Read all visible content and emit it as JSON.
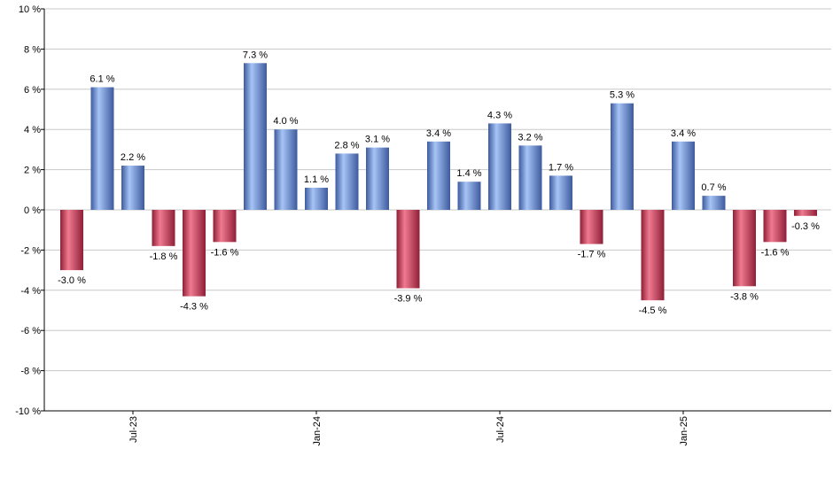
{
  "chart_data": {
    "type": "bar",
    "title": "",
    "xlabel": "",
    "ylabel": "",
    "ylim": [
      -10,
      10
    ],
    "y_ticks": [
      -10,
      -8,
      -6,
      -4,
      -2,
      0,
      2,
      4,
      6,
      8,
      10
    ],
    "y_tick_suffix": " %",
    "grid": true,
    "legend": "none",
    "x_tick_labels": [
      {
        "label": "Jul-23",
        "index": 2
      },
      {
        "label": "Jan-24",
        "index": 8
      },
      {
        "label": "Jul-24",
        "index": 14
      },
      {
        "label": "Jan-25",
        "index": 20
      }
    ],
    "values": [
      -3.0,
      6.1,
      2.2,
      -1.8,
      -4.3,
      -1.6,
      7.3,
      4.0,
      1.1,
      2.8,
      3.1,
      -3.9,
      3.4,
      1.4,
      4.3,
      3.2,
      1.7,
      -1.7,
      5.3,
      -4.5,
      3.4,
      0.7,
      -3.8,
      -1.6,
      -0.3
    ],
    "data_labels": [
      "-3.0 %",
      "6.1 %",
      "2.2 %",
      "-1.8 %",
      "-4.3 %",
      "-1.6 %",
      "7.3 %",
      "4.0 %",
      "1.1 %",
      "2.8 %",
      "3.1 %",
      "-3.9 %",
      "3.4 %",
      "1.4 %",
      "4.3 %",
      "3.2 %",
      "1.7 %",
      "-1.7 %",
      "5.3 %",
      "-4.5 %",
      "3.4 %",
      "0.7 %",
      "-3.8 %",
      "-1.6 %",
      "-0.3 %"
    ],
    "colors": {
      "positive_light": "#a6c4f5",
      "positive_dark": "#3d5a9e",
      "negative_light": "#f07a90",
      "negative_dark": "#8e1f37",
      "grid": "#c8c8c8"
    }
  }
}
